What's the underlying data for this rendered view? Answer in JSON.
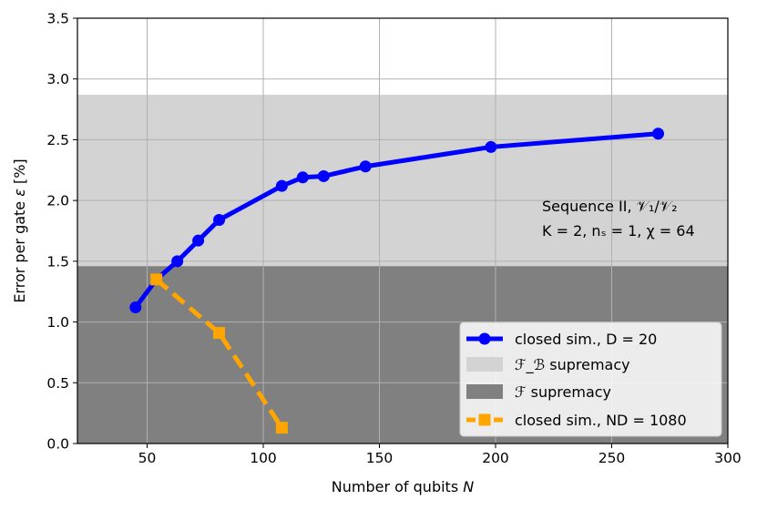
{
  "chart_data": {
    "type": "line",
    "title": "",
    "xlabel": "Number of qubits N",
    "ylabel": "Error per gate ε [%]",
    "xlim": [
      20,
      300
    ],
    "ylim": [
      0.0,
      3.5
    ],
    "x_ticks": [
      50,
      100,
      150,
      200,
      250,
      300
    ],
    "x_tick_labels": [
      "50",
      "100",
      "150",
      "200",
      "250",
      "300"
    ],
    "y_ticks": [
      0.0,
      0.5,
      1.0,
      1.5,
      2.0,
      2.5,
      3.0,
      3.5
    ],
    "y_tick_labels": [
      "0.0",
      "0.5",
      "1.0",
      "1.5",
      "2.0",
      "2.5",
      "3.0",
      "3.5"
    ],
    "grid": true,
    "regions": [
      {
        "name": "F_B supremacy",
        "y_range": [
          1.46,
          2.87
        ],
        "color": "#d3d3d3"
      },
      {
        "name": "F supremacy",
        "y_range": [
          0.0,
          1.46
        ],
        "color": "#808080"
      }
    ],
    "series": [
      {
        "name": "closed sim., D = 20",
        "color": "#0000ff",
        "line_style": "solid",
        "marker": "circle",
        "x": [
          45,
          54,
          63,
          72,
          81,
          108,
          117,
          126,
          144,
          198,
          270
        ],
        "y": [
          1.12,
          1.35,
          1.5,
          1.67,
          1.84,
          2.12,
          2.19,
          2.2,
          2.28,
          2.44,
          2.55
        ]
      },
      {
        "name": "closed sim., ND = 1080",
        "color": "#ffa500",
        "line_style": "dashed",
        "marker": "square",
        "x": [
          54,
          81,
          108
        ],
        "y": [
          1.35,
          0.91,
          0.13
        ]
      }
    ],
    "annotations": [
      {
        "line1": "Sequence II, 𝒱₁/𝒱₂",
        "line2": "K = 2, nₛ = 1, χ = 64",
        "position": "right-middle"
      }
    ],
    "legend": {
      "position": "lower-right",
      "entries": [
        {
          "label": "closed sim., D = 20",
          "kind": "line-circle",
          "color": "#0000ff"
        },
        {
          "label": "ℱ_ℬ supremacy",
          "kind": "patch",
          "color": "#d3d3d3"
        },
        {
          "label": "ℱ supremacy",
          "kind": "patch",
          "color": "#808080"
        },
        {
          "label": "closed sim., ND = 1080",
          "kind": "dashed-square",
          "color": "#ffa500"
        }
      ]
    }
  }
}
